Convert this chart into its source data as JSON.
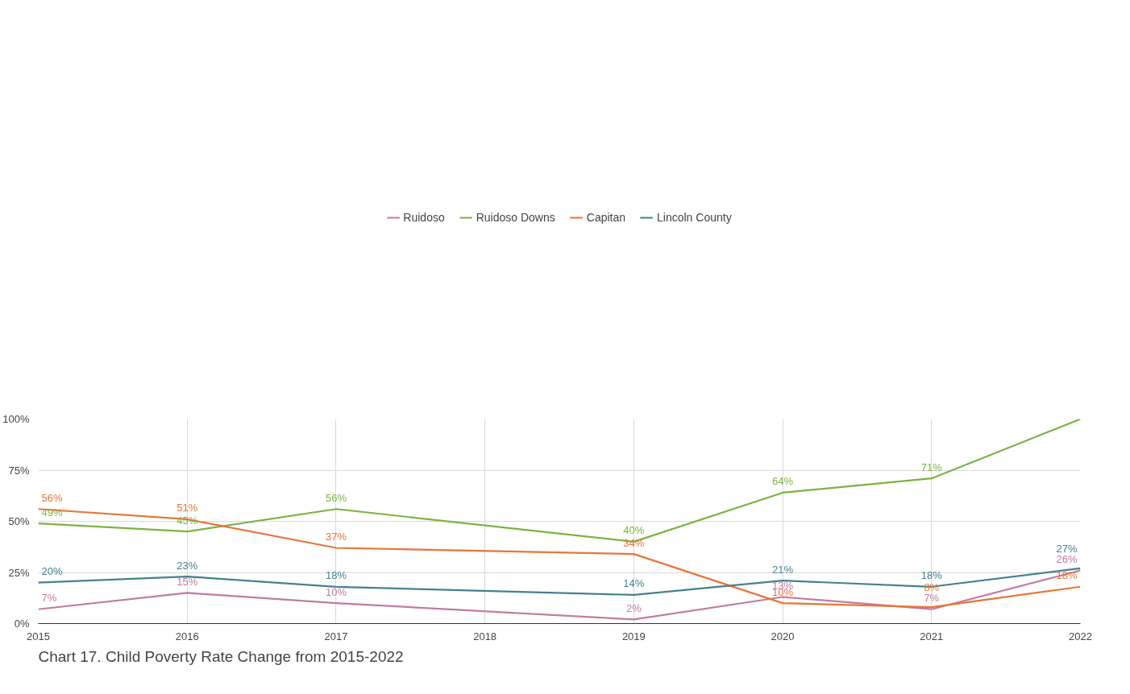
{
  "chart_data": {
    "type": "line",
    "x": [
      2015,
      2016,
      2017,
      2019,
      2020,
      2021,
      2022
    ],
    "series": [
      {
        "name": "Ruidoso",
        "color": "#c27ba0",
        "values": [
          7,
          15,
          10,
          2,
          13,
          7,
          26
        ],
        "value_labels": [
          "7%",
          "15%",
          "10%",
          "2%",
          "13%",
          "7%",
          "26%"
        ]
      },
      {
        "name": "Ruidoso Downs",
        "color": "#7cb342",
        "values": [
          49,
          45,
          56,
          40,
          64,
          71,
          100
        ],
        "value_labels": [
          "49%",
          "45%",
          "56%",
          "40%",
          "64%",
          "71%",
          null
        ]
      },
      {
        "name": "Capitan",
        "color": "#e8753a",
        "values": [
          56,
          51,
          37,
          34,
          10,
          8,
          18
        ],
        "value_labels": [
          "56%",
          "51%",
          "37%",
          "34%",
          "10%",
          "8%",
          "18%"
        ]
      },
      {
        "name": "Lincoln County",
        "color": "#45818e",
        "values": [
          20,
          23,
          18,
          14,
          21,
          18,
          27
        ],
        "value_labels": [
          "20%",
          "23%",
          "18%",
          "14%",
          "21%",
          "18%",
          "27%"
        ]
      }
    ],
    "xlim": [
      2015,
      2022
    ],
    "xticks": [
      2015,
      2016,
      2017,
      2018,
      2019,
      2020,
      2021,
      2022
    ],
    "ylim": [
      0,
      100
    ],
    "yticks": [
      {
        "value": 0,
        "label": "0%"
      },
      {
        "value": 25,
        "label": "25%"
      },
      {
        "value": 50,
        "label": "50%"
      },
      {
        "value": 75,
        "label": "75%"
      },
      {
        "value": 100,
        "label": "100%"
      }
    ],
    "grid": true,
    "legend": "top",
    "marker": "none",
    "line_style": "solid",
    "annotations": [
      "Chart 17. Child Poverty Rate Change from 2015-2022"
    ]
  }
}
